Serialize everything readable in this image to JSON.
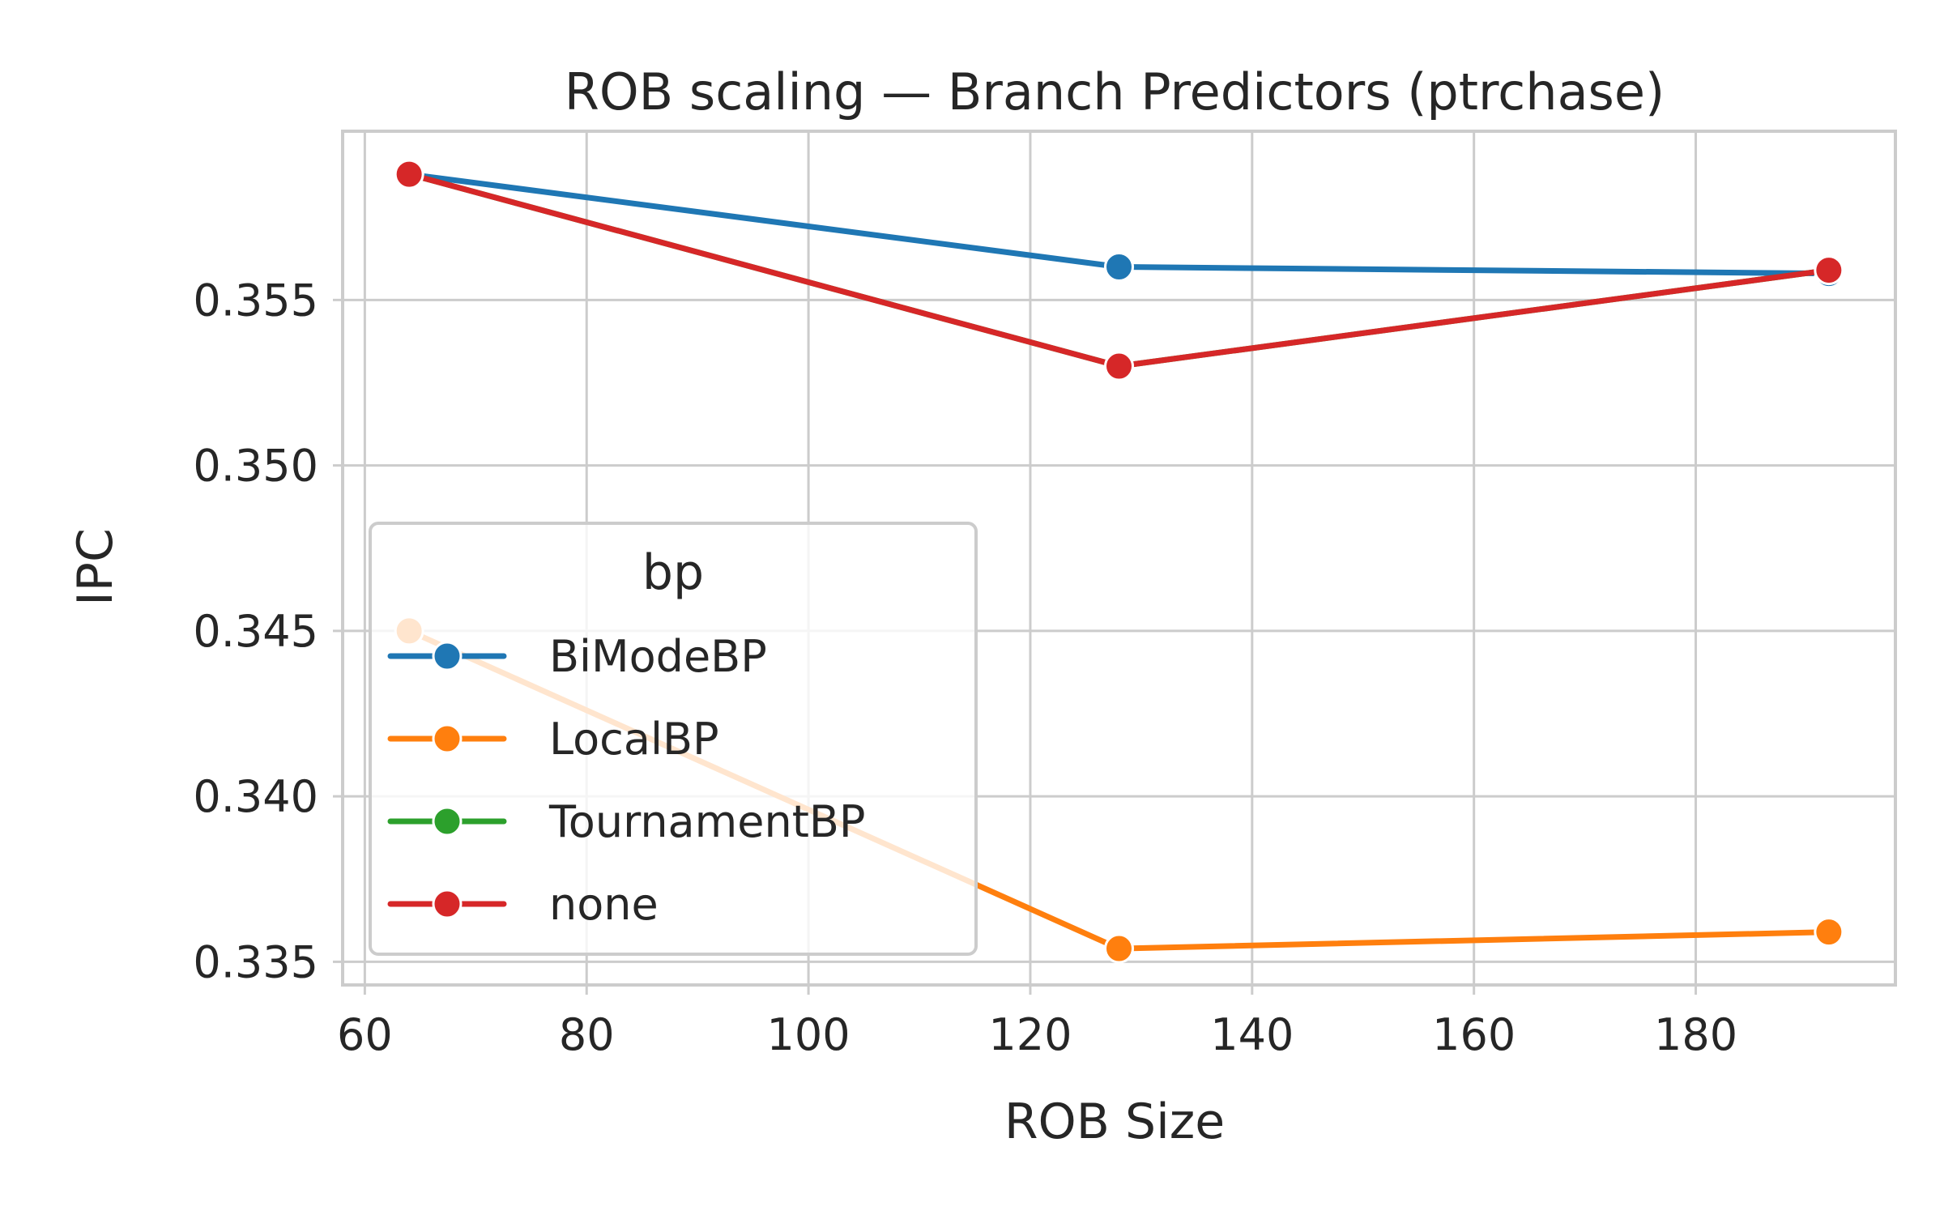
{
  "chart_data": {
    "type": "line",
    "title": "ROB scaling — Branch Predictors (ptrchase)",
    "xlabel": "ROB Size",
    "ylabel": "IPC",
    "xlim": [
      58,
      198
    ],
    "ylim": [
      0.3343,
      0.3601
    ],
    "xticks": [
      60,
      80,
      100,
      120,
      140,
      160,
      180
    ],
    "yticks": [
      0.335,
      0.34,
      0.345,
      0.35,
      0.355
    ],
    "ytick_labels": [
      "0.335",
      "0.340",
      "0.345",
      "0.350",
      "0.355"
    ],
    "grid": true,
    "legend": {
      "title": "bp",
      "placement": "center-left"
    },
    "x": [
      64,
      128,
      192
    ],
    "series": [
      {
        "name": "BiModeBP",
        "color": "#1f77b4",
        "values": [
          0.3588,
          0.356,
          0.3558
        ]
      },
      {
        "name": "LocalBP",
        "color": "#ff7f0e",
        "values": [
          0.345,
          0.3354,
          0.3359
        ]
      },
      {
        "name": "TournamentBP",
        "color": "#2ca02c",
        "values": [
          0.3588,
          0.353,
          0.3559
        ]
      },
      {
        "name": "none",
        "color": "#d62728",
        "values": [
          0.3588,
          0.353,
          0.3559
        ]
      }
    ]
  }
}
